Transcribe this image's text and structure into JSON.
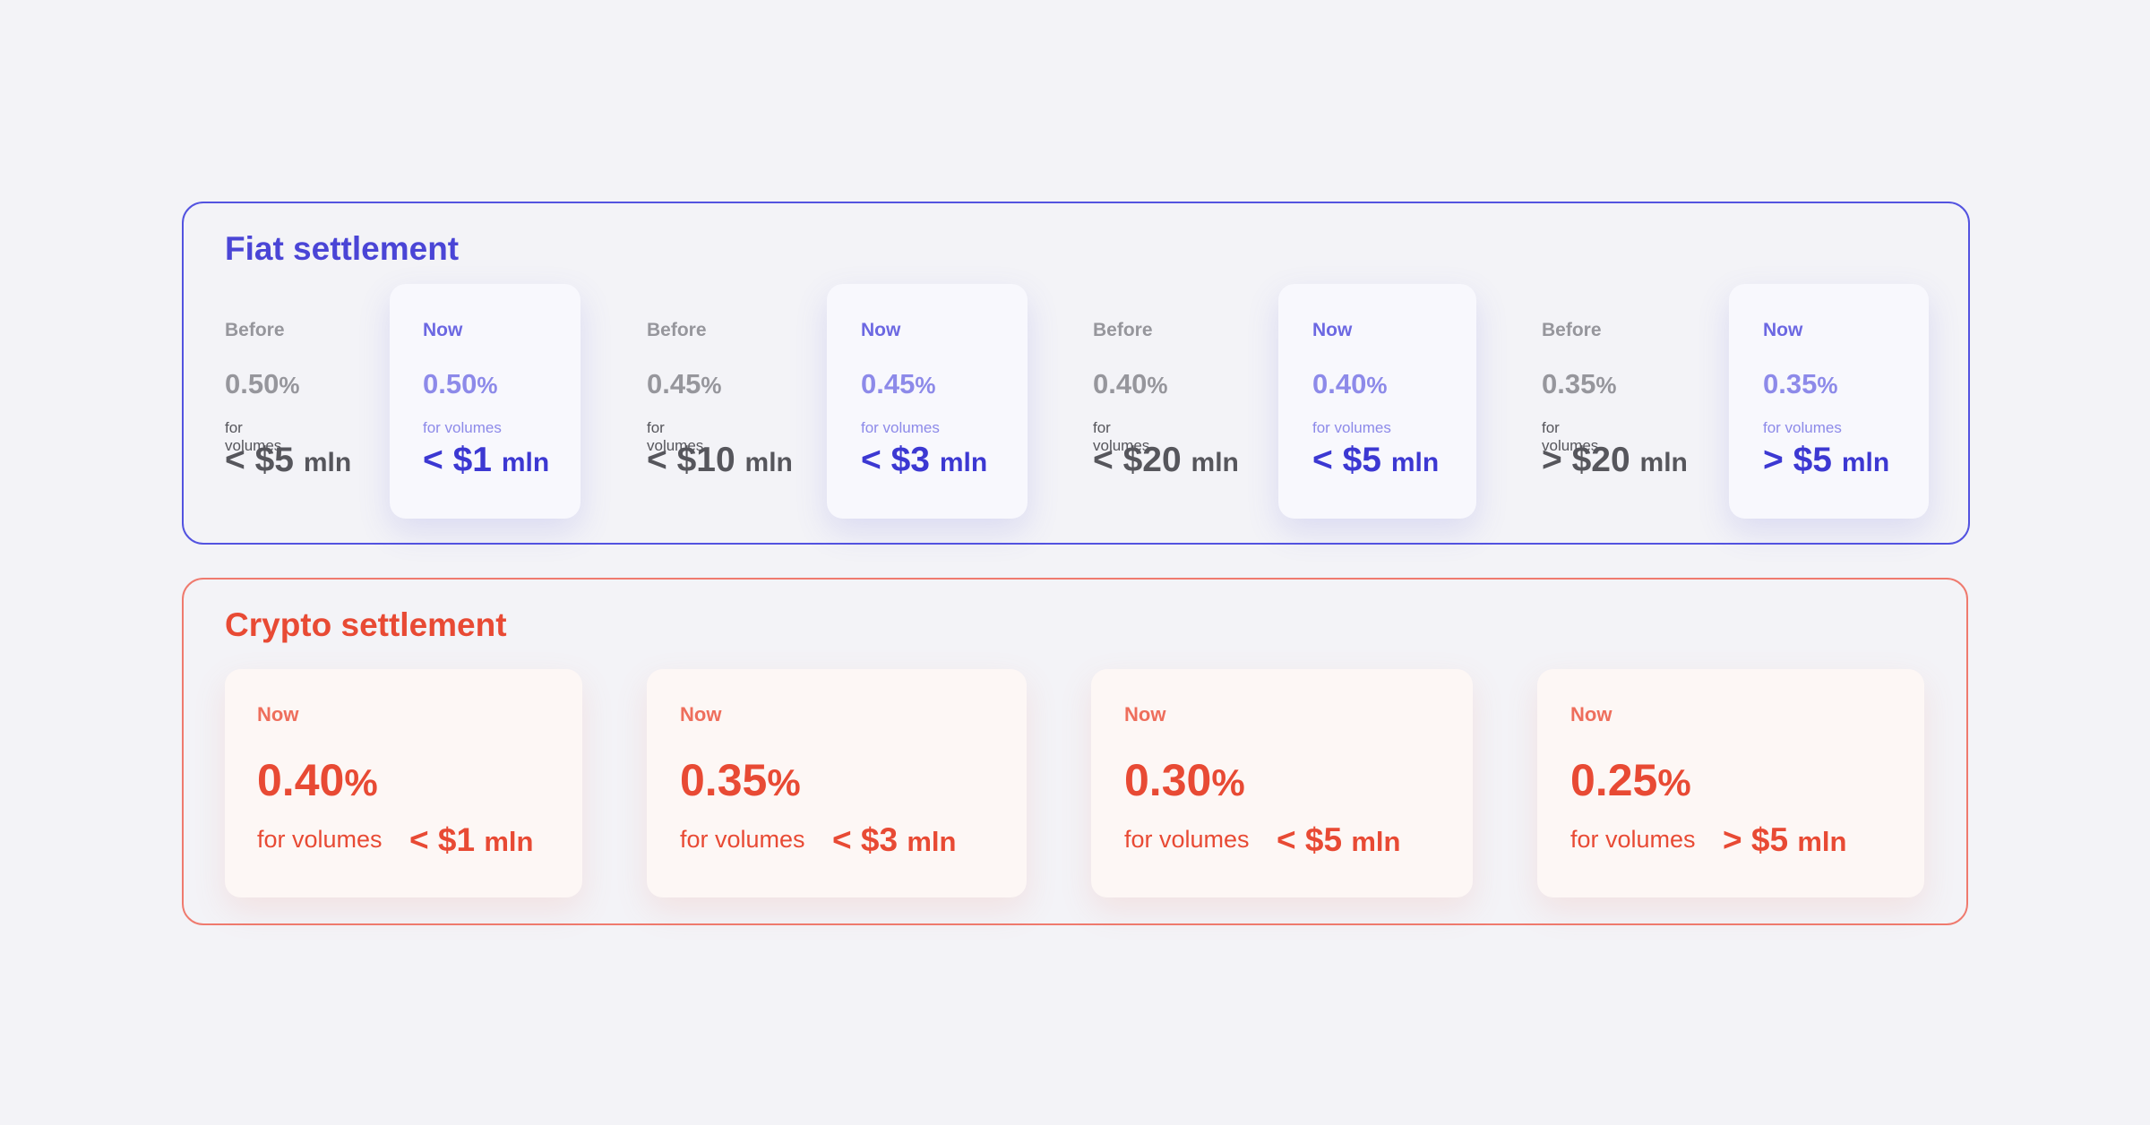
{
  "fiat": {
    "title": "Fiat settlement",
    "columns": [
      {
        "label": "Before",
        "percent": "0.50",
        "percent_symbol": "%",
        "volume_label": "for volumes",
        "amount": "< $5",
        "unit": "mln"
      },
      {
        "label": "Now",
        "percent": "0.50",
        "percent_symbol": "%",
        "volume_label": "for volumes",
        "amount": "< $1",
        "unit": "mln"
      },
      {
        "label": "Before",
        "percent": "0.45",
        "percent_symbol": "%",
        "volume_label": "for volumes",
        "amount": "< $10",
        "unit": "mln"
      },
      {
        "label": "Now",
        "percent": "0.45",
        "percent_symbol": "%",
        "volume_label": "for volumes",
        "amount": "< $3",
        "unit": "mln"
      },
      {
        "label": "Before",
        "percent": "0.40",
        "percent_symbol": "%",
        "volume_label": "for volumes",
        "amount": "< $20",
        "unit": "mln"
      },
      {
        "label": "Now",
        "percent": "0.40",
        "percent_symbol": "%",
        "volume_label": "for volumes",
        "amount": "< $5",
        "unit": "mln"
      },
      {
        "label": "Before",
        "percent": "0.35",
        "percent_symbol": "%",
        "volume_label": "for volumes",
        "amount": "> $20",
        "unit": "mln"
      },
      {
        "label": "Now",
        "percent": "0.35",
        "percent_symbol": "%",
        "volume_label": "for volumes",
        "amount": "> $5",
        "unit": "mln"
      }
    ]
  },
  "crypto": {
    "title": "Crypto settlement",
    "cards": [
      {
        "label": "Now",
        "percent": "0.40",
        "percent_symbol": "%",
        "volume_label": "for volumes",
        "amount": "< $1",
        "unit": "mln"
      },
      {
        "label": "Now",
        "percent": "0.35",
        "percent_symbol": "%",
        "volume_label": "for volumes",
        "amount": "< $3",
        "unit": "mln"
      },
      {
        "label": "Now",
        "percent": "0.30",
        "percent_symbol": "%",
        "volume_label": "for volumes",
        "amount": "< $5",
        "unit": "mln"
      },
      {
        "label": "Now",
        "percent": "0.25",
        "percent_symbol": "%",
        "volume_label": "for volumes",
        "amount": "> $5",
        "unit": "mln"
      }
    ]
  },
  "colors": {
    "background": "#f3f3f7",
    "fiat_accent": "#4a45d6",
    "crypto_accent": "#e84a34",
    "before_gray": "#96969c"
  }
}
